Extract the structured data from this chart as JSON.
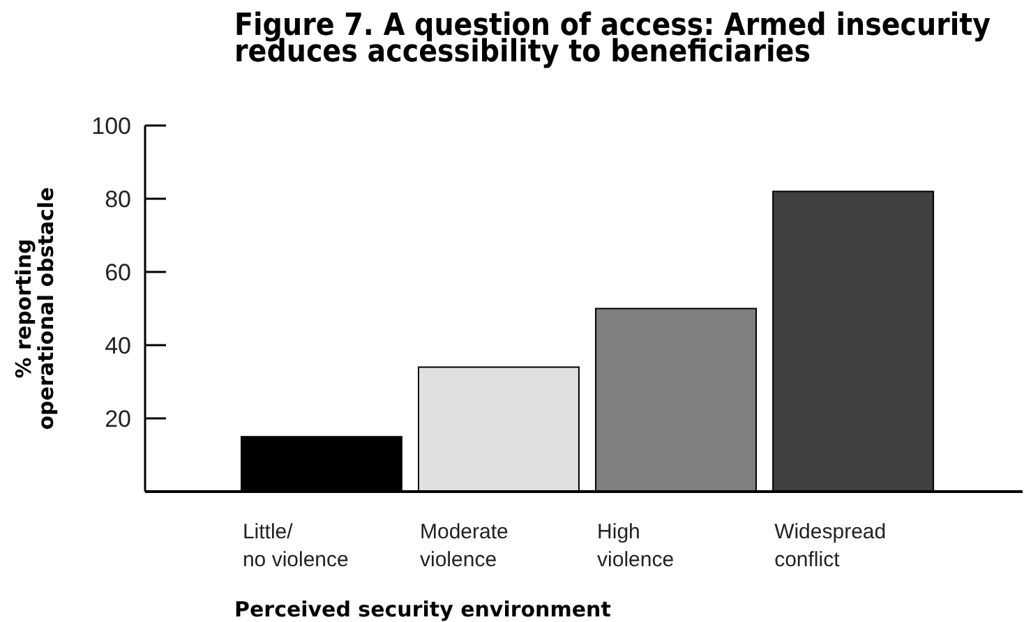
{
  "chart_data": {
    "type": "bar",
    "title": "Figure 7. A question of access: Armed insecurity\nreduces accessibility to beneficiaries",
    "xlabel": "Perceived security environment",
    "ylabel": "% reporting\noperational obstacle",
    "categories": [
      "Little/\nno violence",
      "Moderate\nviolence",
      "High\nviolence",
      "Widespread\nconflict"
    ],
    "values": [
      15,
      34,
      50,
      82
    ],
    "colors": [
      "#000000",
      "#e0e0e0",
      "#808080",
      "#404040"
    ],
    "ylim": [
      0,
      100
    ],
    "yticks": [
      20,
      40,
      60,
      80,
      100
    ],
    "grid": false
  }
}
